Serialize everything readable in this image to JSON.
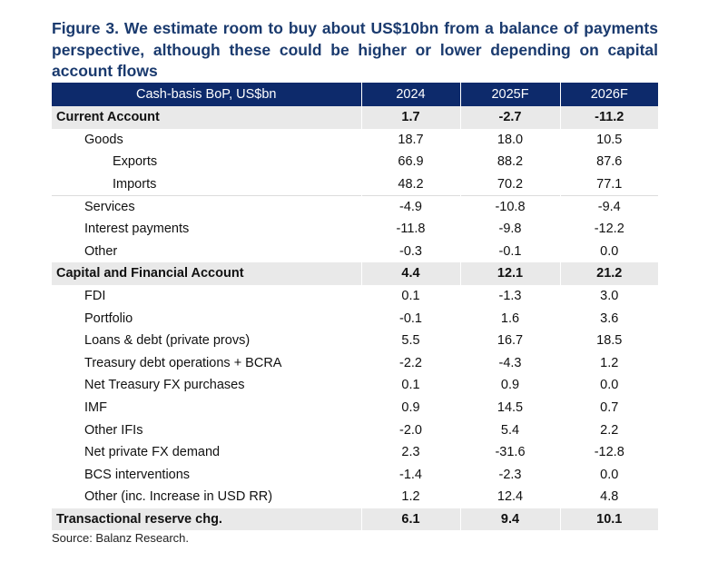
{
  "title": "Figure 3. We estimate room to buy about US$10bn from a balance of payments perspective, although these could be higher or lower depending on capital account flows",
  "table": {
    "headers": [
      "Cash-basis BoP, US$bn",
      "2024",
      "2025F",
      "2026F"
    ],
    "rows": [
      {
        "label": "Current Account",
        "values": [
          "1.7",
          "-2.7",
          "-11.2"
        ]
      },
      {
        "label": "Goods",
        "values": [
          "18.7",
          "18.0",
          "10.5"
        ]
      },
      {
        "label": "Exports",
        "values": [
          "66.9",
          "88.2",
          "87.6"
        ]
      },
      {
        "label": "Imports",
        "values": [
          "48.2",
          "70.2",
          "77.1"
        ]
      },
      {
        "label": "Services",
        "values": [
          "-4.9",
          "-10.8",
          "-9.4"
        ]
      },
      {
        "label": "Interest payments",
        "values": [
          "-11.8",
          "-9.8",
          "-12.2"
        ]
      },
      {
        "label": "Other",
        "values": [
          "-0.3",
          "-0.1",
          "0.0"
        ]
      },
      {
        "label": "Capital and Financial Account",
        "values": [
          "4.4",
          "12.1",
          "21.2"
        ]
      },
      {
        "label": "FDI",
        "values": [
          "0.1",
          "-1.3",
          "3.0"
        ]
      },
      {
        "label": "Portfolio",
        "values": [
          "-0.1",
          "1.6",
          "3.6"
        ]
      },
      {
        "label": "Loans & debt (private provs)",
        "values": [
          "5.5",
          "16.7",
          "18.5"
        ]
      },
      {
        "label": "Treasury debt operations + BCRA",
        "values": [
          "-2.2",
          "-4.3",
          "1.2"
        ]
      },
      {
        "label": "Net Treasury FX purchases",
        "values": [
          "0.1",
          "0.9",
          "0.0"
        ]
      },
      {
        "label": "IMF",
        "values": [
          "0.9",
          "14.5",
          "0.7"
        ]
      },
      {
        "label": "Other IFIs",
        "values": [
          "-2.0",
          "5.4",
          "2.2"
        ]
      },
      {
        "label": "Net private FX demand",
        "values": [
          "2.3",
          "-31.6",
          "-12.8"
        ]
      },
      {
        "label": "BCS interventions",
        "values": [
          "-1.4",
          "-2.3",
          "0.0"
        ]
      },
      {
        "label": "Other (inc. Increase in USD RR)",
        "values": [
          "1.2",
          "12.4",
          "4.8"
        ]
      },
      {
        "label": "Transactional reserve chg.",
        "values": [
          "6.1",
          "9.4",
          "10.1"
        ]
      }
    ]
  },
  "source": "Source: Balanz Research.",
  "colors": {
    "header_bg": "#0d2a6b",
    "title": "#1a3a6e",
    "section_bg": "#e9e9e9"
  }
}
